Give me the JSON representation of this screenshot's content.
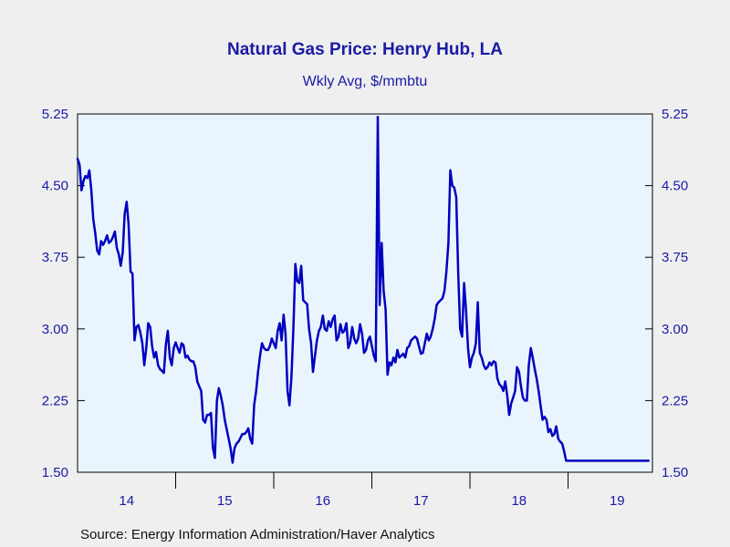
{
  "chart_data": {
    "type": "line",
    "title": "Natural Gas Price: Henry Hub, LA",
    "subtitle": "Wkly Avg, $/mmbtu",
    "source": "Source:  Energy Information Administration/Haver Analytics",
    "ylim": [
      1.5,
      5.25
    ],
    "xlim": [
      2014.0,
      2019.86
    ],
    "yticks": [
      "5.25",
      "4.50",
      "3.75",
      "3.00",
      "2.25",
      "1.50"
    ],
    "ytick_values": [
      5.25,
      4.5,
      3.75,
      3.0,
      2.25,
      1.5
    ],
    "xticks": [
      "14",
      "15",
      "16",
      "17",
      "18",
      "19"
    ],
    "xtick_centers": [
      2014.5,
      2015.5,
      2016.5,
      2017.5,
      2018.5,
      2019.5
    ],
    "year_boundaries": [
      2015,
      2016,
      2017,
      2018,
      2019
    ],
    "grid": false,
    "line_color": "#0000c0",
    "series": [
      {
        "x": [
          2014.0,
          2014.02,
          2014.04,
          2014.06,
          2014.08,
          2014.1,
          2014.12,
          2014.14,
          2014.16,
          2014.18,
          2014.2,
          2014.22,
          2014.24,
          2014.26,
          2014.28,
          2014.3,
          2014.32,
          2014.34,
          2014.36,
          2014.38,
          2014.4,
          2014.42,
          2014.44,
          2014.46,
          2014.48,
          2014.5,
          2014.52,
          2014.54,
          2014.56,
          2014.58,
          2014.6,
          2014.62,
          2014.64,
          2014.66,
          2014.68,
          2014.7,
          2014.72,
          2014.74,
          2014.76,
          2014.78,
          2014.8,
          2014.82,
          2014.84,
          2014.86,
          2014.88,
          2014.9,
          2014.92,
          2014.94,
          2014.96,
          2014.98,
          2015.0,
          2015.02,
          2015.04,
          2015.06,
          2015.08,
          2015.1,
          2015.12,
          2015.14,
          2015.16,
          2015.18,
          2015.2,
          2015.22,
          2015.24,
          2015.26,
          2015.28,
          2015.3,
          2015.32,
          2015.34,
          2015.36,
          2015.38,
          2015.4,
          2015.42,
          2015.44,
          2015.46,
          2015.48,
          2015.5,
          2015.52,
          2015.54,
          2015.56,
          2015.58,
          2015.6,
          2015.62,
          2015.64,
          2015.66,
          2015.68,
          2015.7,
          2015.72,
          2015.74,
          2015.76,
          2015.78,
          2015.8,
          2015.82,
          2015.84,
          2015.86,
          2015.88,
          2015.9,
          2015.92,
          2015.94,
          2015.96,
          2015.98,
          2016.0,
          2016.02,
          2016.04,
          2016.06,
          2016.08,
          2016.1,
          2016.12,
          2016.14,
          2016.16,
          2016.18,
          2016.2,
          2016.22,
          2016.24,
          2016.26,
          2016.28,
          2016.3,
          2016.32,
          2016.34,
          2016.36,
          2016.38,
          2016.4,
          2016.42,
          2016.44,
          2016.46,
          2016.48,
          2016.5,
          2016.52,
          2016.54,
          2016.56,
          2016.58,
          2016.6,
          2016.62,
          2016.64,
          2016.66,
          2016.68,
          2016.7,
          2016.72,
          2016.74,
          2016.76,
          2016.78,
          2016.8,
          2016.82,
          2016.84,
          2016.86,
          2016.88,
          2016.9,
          2016.92,
          2016.94,
          2016.96,
          2016.98,
          2017.0,
          2017.02,
          2017.04,
          2017.06,
          2017.08,
          2017.1,
          2017.12,
          2017.14,
          2017.16,
          2017.18,
          2017.2,
          2017.22,
          2017.24,
          2017.26,
          2017.28,
          2017.3,
          2017.32,
          2017.34,
          2017.36,
          2017.38,
          2017.4,
          2017.42,
          2017.44,
          2017.46,
          2017.48,
          2017.5,
          2017.52,
          2017.54,
          2017.56,
          2017.58,
          2017.6,
          2017.62,
          2017.64,
          2017.66,
          2017.68,
          2017.7,
          2017.72,
          2017.74,
          2017.76,
          2017.78,
          2017.8,
          2017.82,
          2017.84,
          2017.86,
          2017.88,
          2017.9,
          2017.92,
          2017.94,
          2017.96,
          2017.98,
          2018.0,
          2018.02,
          2018.04,
          2018.06,
          2018.08,
          2018.1,
          2018.12,
          2018.14,
          2018.16,
          2018.18,
          2018.2,
          2018.22,
          2018.24,
          2018.26,
          2018.28,
          2018.3,
          2018.32,
          2018.34,
          2018.36,
          2018.38,
          2018.4,
          2018.42,
          2018.44,
          2018.46,
          2018.48,
          2018.5,
          2018.52,
          2018.54,
          2018.56,
          2018.58,
          2018.6,
          2018.62,
          2018.64,
          2018.66,
          2018.68,
          2018.7,
          2018.72,
          2018.74,
          2018.76,
          2018.78,
          2018.8,
          2018.82,
          2018.84,
          2018.86,
          2018.88,
          2018.9,
          2018.92,
          2018.94,
          2018.96,
          2018.98,
          2019.0,
          2019.02,
          2019.04,
          2019.06,
          2019.08,
          2019.1,
          2019.12,
          2019.14,
          2019.16,
          2019.18,
          2019.2,
          2019.22,
          2019.24,
          2019.26,
          2019.28,
          2019.3,
          2019.32,
          2019.34,
          2019.36,
          2019.38,
          2019.4,
          2019.42,
          2019.44,
          2019.46,
          2019.48,
          2019.5,
          2019.52,
          2019.54,
          2019.56,
          2019.58,
          2019.6,
          2019.62,
          2019.64,
          2019.66,
          2019.68,
          2019.7,
          2019.72,
          2019.74,
          2019.76,
          2019.78,
          2019.8,
          2019.82
        ],
        "values": [
          4.78,
          4.72,
          4.45,
          4.55,
          4.6,
          4.58,
          4.66,
          4.45,
          4.15,
          4.0,
          3.82,
          3.78,
          3.92,
          3.88,
          3.92,
          3.98,
          3.9,
          3.92,
          3.96,
          4.02,
          3.85,
          3.78,
          3.66,
          3.8,
          4.2,
          4.33,
          4.1,
          3.6,
          3.58,
          2.88,
          3.02,
          3.04,
          2.96,
          2.85,
          2.62,
          2.8,
          3.06,
          3.02,
          2.82,
          2.7,
          2.76,
          2.62,
          2.58,
          2.56,
          2.54,
          2.84,
          2.98,
          2.7,
          2.62,
          2.8,
          2.86,
          2.8,
          2.75,
          2.85,
          2.83,
          2.7,
          2.72,
          2.68,
          2.66,
          2.66,
          2.6,
          2.45,
          2.4,
          2.35,
          2.05,
          2.02,
          2.1,
          2.1,
          2.12,
          1.75,
          1.65,
          2.25,
          2.38,
          2.3,
          2.2,
          2.05,
          1.95,
          1.85,
          1.75,
          1.6,
          1.75,
          1.8,
          1.82,
          1.86,
          1.9,
          1.9,
          1.92,
          1.96,
          1.85,
          1.8,
          2.2,
          2.35,
          2.55,
          2.72,
          2.85,
          2.8,
          2.78,
          2.78,
          2.82,
          2.9,
          2.85,
          2.8,
          2.98,
          3.06,
          2.88,
          3.15,
          2.95,
          2.35,
          2.2,
          2.5,
          3.0,
          3.68,
          3.5,
          3.48,
          3.66,
          3.3,
          3.28,
          3.26,
          3.0,
          2.85,
          2.55,
          2.72,
          2.88,
          2.98,
          3.02,
          3.14,
          3.0,
          2.98,
          3.08,
          3.02,
          3.1,
          3.14,
          2.88,
          2.92,
          3.05,
          2.96,
          2.98,
          3.06,
          2.8,
          2.86,
          3.02,
          2.9,
          2.85,
          2.9,
          3.05,
          2.95,
          2.75,
          2.78,
          2.88,
          2.92,
          2.82,
          2.72,
          2.66,
          5.22,
          3.25,
          3.9,
          3.4,
          3.2,
          2.52,
          2.65,
          2.62,
          2.7,
          2.65,
          2.78,
          2.7,
          2.72,
          2.74,
          2.7,
          2.8,
          2.82,
          2.88,
          2.9,
          2.92,
          2.9,
          2.82,
          2.74,
          2.75,
          2.85,
          2.95,
          2.88,
          2.92,
          3.0,
          3.1,
          3.25,
          3.28,
          3.3,
          3.32,
          3.4,
          3.6,
          3.9,
          4.66,
          4.5,
          4.48,
          4.38,
          3.6,
          3.0,
          2.92,
          3.48,
          3.2,
          2.8,
          2.6,
          2.7,
          2.75,
          2.85,
          3.28,
          2.75,
          2.7,
          2.62,
          2.58,
          2.6,
          2.65,
          2.62,
          2.66,
          2.65,
          2.48,
          2.42,
          2.4,
          2.35,
          2.45,
          2.3,
          2.1,
          2.22,
          2.28,
          2.35,
          2.6,
          2.55,
          2.4,
          2.28,
          2.25,
          2.25,
          2.62,
          2.8,
          2.7,
          2.58,
          2.48,
          2.35,
          2.2,
          2.05,
          2.08,
          2.05,
          1.92,
          1.95,
          1.88,
          1.9,
          1.98,
          1.85,
          1.82,
          1.8,
          1.72,
          1.62,
          1.62,
          1.62,
          1.62,
          1.62,
          1.62,
          1.62,
          1.62,
          1.62,
          1.62,
          1.62,
          1.62,
          1.62,
          1.62,
          1.62,
          1.62,
          1.62,
          1.62,
          1.62,
          1.62,
          1.62,
          1.62,
          1.62,
          1.62,
          1.62,
          1.62,
          1.62,
          1.62,
          1.62,
          1.62,
          1.62,
          1.62,
          1.62,
          1.62,
          1.62,
          1.62,
          1.62,
          1.62,
          1.62,
          1.62,
          1.62,
          1.62,
          1.62
        ]
      }
    ]
  }
}
